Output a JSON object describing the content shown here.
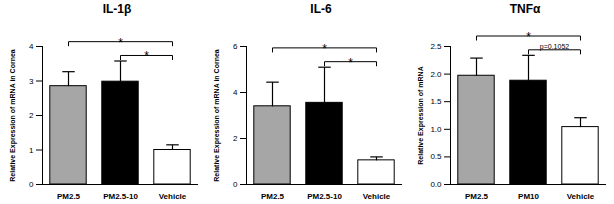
{
  "chart_data": [
    {
      "type": "bar",
      "title": "IL-1β",
      "y_label": "Relative Expression of mRNA in Cornea",
      "categories": [
        "PM2.5",
        "PM2.5-10",
        "Vehicle"
      ],
      "values": [
        2.85,
        2.98,
        1.0
      ],
      "errors": [
        0.42,
        0.6,
        0.15
      ],
      "colors": [
        "#a6a6a6",
        "#000000",
        "#ffffff"
      ],
      "ylim": [
        0,
        4
      ],
      "yticks": [
        0,
        1,
        2,
        3,
        4
      ],
      "annotations": [
        {
          "text": "*",
          "from": "PM2.5",
          "to": "Vehicle"
        },
        {
          "text": "*",
          "from": "PM2.5-10",
          "to": "Vehicle"
        }
      ]
    },
    {
      "type": "bar",
      "title": "IL-6",
      "y_label": "Relative Expression of mRNA in Cornea",
      "categories": [
        "PM2.5",
        "PM2.5-10",
        "Vehicle"
      ],
      "values": [
        3.4,
        3.55,
        1.05
      ],
      "errors": [
        1.05,
        1.55,
        0.15
      ],
      "colors": [
        "#a6a6a6",
        "#000000",
        "#ffffff"
      ],
      "ylim": [
        0,
        6
      ],
      "yticks": [
        0,
        2,
        4,
        6
      ],
      "annotations": [
        {
          "text": "*",
          "from": "PM2.5",
          "to": "Vehicle"
        },
        {
          "text": "*",
          "from": "PM2.5-10",
          "to": "Vehicle"
        }
      ]
    },
    {
      "type": "bar",
      "title": "TNFα",
      "y_label": "Relative Expression of mRNA",
      "categories": [
        "PM2.5",
        "PM10",
        "Vehicle"
      ],
      "values": [
        1.97,
        1.88,
        1.04
      ],
      "errors": [
        0.32,
        0.46,
        0.17
      ],
      "colors": [
        "#a6a6a6",
        "#000000",
        "#ffffff"
      ],
      "ylim": [
        0,
        2.5
      ],
      "yticks": [
        {
          "value": 0,
          "label": "0.0"
        },
        0.5,
        {
          "value": 1,
          "label": "1.0"
        },
        1.5,
        {
          "value": 2,
          "label": "2.0"
        },
        2.5
      ],
      "annotations": [
        {
          "text": "*",
          "from": "PM2.5",
          "to": "Vehicle"
        },
        {
          "text": "p=0.1052",
          "from": "PM10",
          "to": "Vehicle"
        }
      ]
    }
  ]
}
